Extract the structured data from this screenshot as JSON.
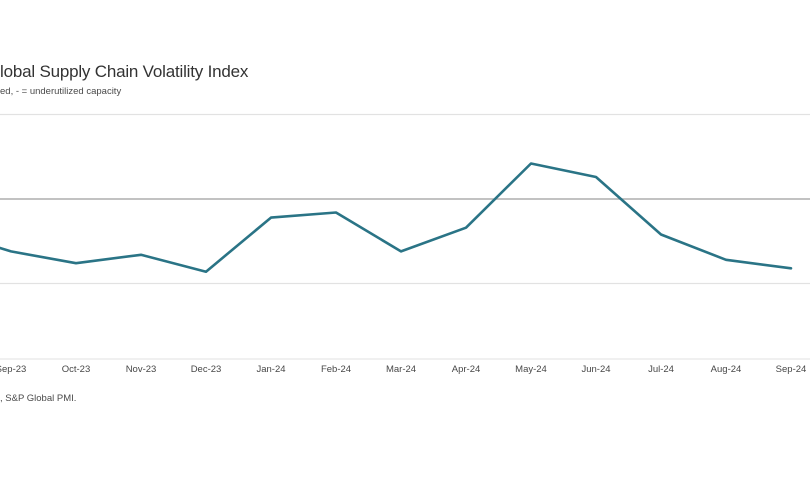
{
  "header": {
    "title": "lobal Supply Chain Volatility Index",
    "subtitle": "ed, - = underutilized capacity"
  },
  "footer": {
    "source": ", S&P Global PMI."
  },
  "colors": {
    "line": "#2a7486",
    "zero_gridline": "#aeaeae",
    "minor_gridline": "#e2e2e2",
    "axis_line": "#e6e6e6",
    "title_text": "#333333",
    "axis_text": "#474747"
  },
  "chart_data": {
    "type": "line",
    "title": "lobal Supply Chain Volatility Index",
    "subtitle": "ed, - = underutilized capacity",
    "categories": [
      "Sep-23",
      "Oct-23",
      "Nov-23",
      "Dec-23",
      "Jan-24",
      "Feb-24",
      "Mar-24",
      "Apr-24",
      "May-24",
      "Jun-24",
      "Jul-24",
      "Aug-24",
      "Sep-24"
    ],
    "values": [
      -0.31,
      -0.38,
      -0.33,
      -0.43,
      -0.11,
      -0.08,
      -0.31,
      -0.17,
      0.21,
      0.13,
      -0.21,
      -0.36,
      -0.41
    ],
    "left_edge_clipped_value": -0.29,
    "xlabel": "",
    "ylabel": "",
    "ylim": [
      -0.95,
      0.55
    ],
    "gridlines": [
      0.5,
      0,
      -0.5
    ],
    "zero_line_value": 0,
    "grid": "horizontal-only",
    "legend_position": "none",
    "y_tick_labels_visible": false
  }
}
